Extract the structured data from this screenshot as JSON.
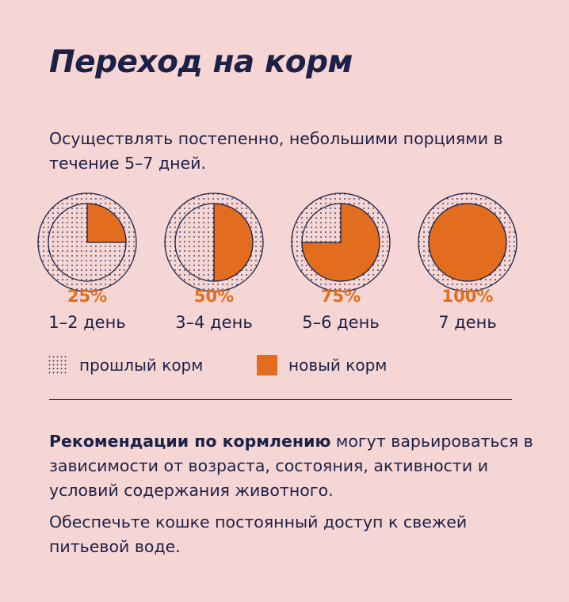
{
  "title": "Переход на корм",
  "intro": "Осуществлять постепенно, небольшими порциями в течение 5–7 дней.",
  "colors": {
    "background": "#f6d6d4",
    "text": "#1c2148",
    "accent": "#e36d1e"
  },
  "chart_data": {
    "type": "pie",
    "series": [
      {
        "name": "новый корм",
        "values": [
          25,
          50,
          75,
          100
        ]
      },
      {
        "name": "прошлый корм",
        "values": [
          75,
          50,
          25,
          0
        ]
      }
    ],
    "categories": [
      "1–2 день",
      "3–4 день",
      "5–6 день",
      "7 день"
    ],
    "data_labels": [
      "25%",
      "50%",
      "75%",
      "100%"
    ]
  },
  "legend": {
    "old": "прошлый корм",
    "new": "новый корм"
  },
  "recommendation": {
    "bold": "Рекомендации по кормлению",
    "rest": " могут варьироваться в зависимости от возраста, состояния, активности и условий содержания животного."
  },
  "water_note": "Обеспечьте кошке постоянный доступ к свежей питьевой воде."
}
